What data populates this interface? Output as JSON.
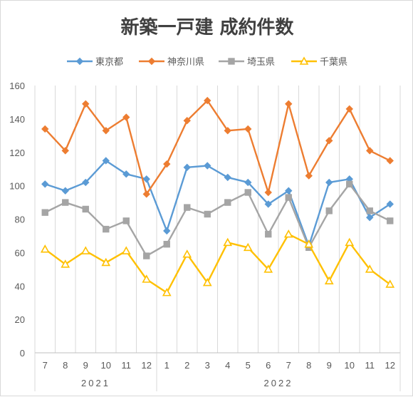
{
  "chart_data": {
    "type": "line",
    "title": "新築一戸建 成約件数",
    "categories": [
      "7",
      "8",
      "9",
      "10",
      "11",
      "12",
      "1",
      "2",
      "3",
      "4",
      "5",
      "6",
      "7",
      "8",
      "9",
      "10",
      "11",
      "12"
    ],
    "year_groups": [
      {
        "label": "2021",
        "start": 0,
        "end": 5
      },
      {
        "label": "2022",
        "start": 6,
        "end": 17
      }
    ],
    "ylim": [
      0,
      160
    ],
    "yticks": [
      "0",
      "20",
      "40",
      "60",
      "80",
      "100",
      "120",
      "140",
      "160"
    ],
    "grid": "vertical",
    "legend_position": "top",
    "series": [
      {
        "name": "東京都",
        "color": "#5b9bd5",
        "marker": "diamond",
        "values": [
          101,
          97,
          102,
          115,
          107,
          104,
          73,
          111,
          112,
          105,
          102,
          89,
          97,
          64,
          102,
          104,
          81,
          89
        ]
      },
      {
        "name": "神奈川県",
        "color": "#ed7d31",
        "marker": "diamond",
        "values": [
          134,
          121,
          149,
          133,
          141,
          95,
          113,
          139,
          151,
          133,
          134,
          96,
          149,
          106,
          127,
          146,
          121,
          115
        ]
      },
      {
        "name": "埼玉県",
        "color": "#a5a5a5",
        "marker": "square",
        "values": [
          84,
          90,
          86,
          74,
          79,
          58,
          65,
          87,
          83,
          90,
          96,
          71,
          93,
          63,
          85,
          101,
          85,
          79
        ]
      },
      {
        "name": "千葉県",
        "color": "#ffc000",
        "marker": "triangle",
        "values": [
          62,
          53,
          61,
          54,
          61,
          44,
          36,
          59,
          42,
          66,
          63,
          50,
          71,
          65,
          43,
          66,
          50,
          41
        ]
      }
    ]
  }
}
